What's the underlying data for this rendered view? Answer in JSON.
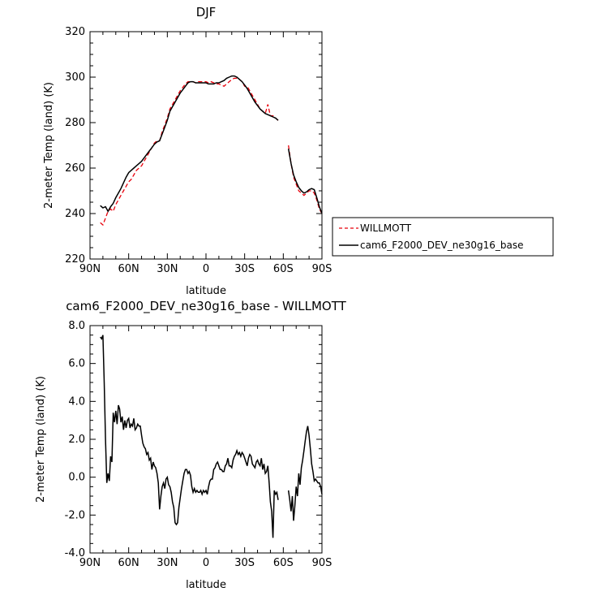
{
  "chart_data": [
    {
      "type": "line",
      "title": "DJF",
      "xlabel": "latitude",
      "ylabel": "2-meter Temp (land) (K)",
      "xlim": [
        90,
        -90
      ],
      "ylim": [
        220,
        320
      ],
      "x_ticks": [
        90,
        60,
        30,
        0,
        -30,
        -60,
        -90
      ],
      "x_tick_labels": [
        "90N",
        "60N",
        "30N",
        "0",
        "30S",
        "60S",
        "90S"
      ],
      "y_ticks": [
        220,
        240,
        260,
        280,
        300,
        320
      ],
      "y_tick_labels": [
        "220",
        "240",
        "260",
        "280",
        "300",
        "320"
      ],
      "legend_position": "right",
      "series": [
        {
          "name": "WILLMOTT",
          "color": "#e8000b",
          "dash": "dashed",
          "segments": [
            {
              "x": [
                82,
                80,
                78,
                76,
                74,
                72,
                70,
                68,
                66,
                64,
                62,
                60,
                58,
                56,
                54,
                52,
                50,
                48,
                46,
                44,
                42,
                40,
                38,
                36,
                34,
                32,
                30,
                28,
                26,
                24,
                22,
                20,
                18,
                16,
                14,
                12,
                10,
                8,
                6,
                4,
                2,
                0,
                -2,
                -4,
                -6,
                -8,
                -10,
                -12,
                -14,
                -16,
                -18,
                -20,
                -22,
                -24,
                -26,
                -28,
                -30,
                -32,
                -34,
                -36,
                -38,
                -40,
                -42,
                -44,
                -46,
                -48,
                -50,
                -52,
                -54,
                -56
              ],
              "y": [
                236,
                235,
                238,
                241,
                242,
                241,
                244,
                246,
                248,
                250,
                252,
                254,
                255,
                257,
                259,
                260,
                261,
                263,
                265,
                267,
                269,
                271,
                272,
                272,
                276,
                279,
                282,
                286,
                288,
                290,
                292,
                294,
                295.5,
                297,
                298,
                298,
                298,
                297.5,
                298,
                298,
                298,
                298,
                297.5,
                298,
                297.5,
                297,
                297,
                296.5,
                296,
                297,
                298,
                299,
                299.5,
                299.5,
                299,
                298,
                296,
                296,
                294,
                292,
                290,
                288,
                286,
                285,
                284,
                288,
                283,
                283,
                282,
                281
              ]
            },
            {
              "x": [
                -64,
                -66,
                -68,
                -70,
                -72,
                -74,
                -76,
                -78,
                -80,
                -82,
                -84,
                -86,
                -88,
                -90
              ],
              "y": [
                270,
                262,
                256,
                253,
                250,
                249,
                248,
                249,
                250,
                250,
                249,
                246,
                242,
                240
              ]
            }
          ]
        },
        {
          "name": "cam6_F2000_DEV_ne30g16_base",
          "color": "#000000",
          "dash": "solid",
          "segments": [
            {
              "x": [
                82,
                80,
                78,
                76,
                74,
                72,
                70,
                68,
                66,
                64,
                62,
                60,
                58,
                56,
                54,
                52,
                50,
                48,
                46,
                44,
                42,
                40,
                38,
                36,
                34,
                32,
                30,
                28,
                26,
                24,
                22,
                20,
                18,
                16,
                14,
                12,
                10,
                8,
                6,
                4,
                2,
                0,
                -2,
                -4,
                -6,
                -8,
                -10,
                -12,
                -14,
                -16,
                -18,
                -20,
                -22,
                -24,
                -26,
                -28,
                -30,
                -32,
                -34,
                -36,
                -38,
                -40,
                -42,
                -44,
                -46,
                -48,
                -50,
                -52,
                -54,
                -56
              ],
              "y": [
                243.5,
                242.5,
                243,
                241,
                243,
                244.5,
                247,
                249,
                251,
                253.5,
                256,
                258,
                259,
                260,
                261,
                262,
                263,
                264.5,
                266,
                267.5,
                269,
                270.5,
                271.5,
                272,
                275,
                278,
                281,
                285,
                287,
                289,
                291,
                293,
                294.5,
                296,
                297.5,
                298,
                298,
                297.5,
                297.5,
                297.5,
                297.5,
                297.5,
                297,
                297,
                297,
                297.5,
                297.5,
                298,
                298.5,
                299.5,
                300,
                300.5,
                300.5,
                300,
                299,
                298,
                296.5,
                295,
                293,
                291,
                289,
                287.5,
                286,
                285,
                284,
                283.5,
                283,
                282.5,
                282,
                281
              ]
            },
            {
              "x": [
                -64,
                -66,
                -68,
                -70,
                -72,
                -74,
                -76,
                -78,
                -80,
                -82,
                -84,
                -86,
                -88,
                -90
              ],
              "y": [
                268.5,
                262,
                257,
                254,
                251.5,
                250,
                249,
                249.5,
                250.5,
                251,
                250.5,
                247,
                243,
                240
              ]
            }
          ]
        }
      ]
    },
    {
      "type": "line",
      "title": "cam6_F2000_DEV_ne30g16_base - WILLMOTT",
      "xlabel": "latitude",
      "ylabel": "2-meter Temp (land) (K)",
      "xlim": [
        90,
        -90
      ],
      "ylim": [
        -4,
        8
      ],
      "x_ticks": [
        90,
        60,
        30,
        0,
        -30,
        -60,
        -90
      ],
      "x_tick_labels": [
        "90N",
        "60N",
        "30N",
        "0",
        "30S",
        "60S",
        "90S"
      ],
      "y_ticks": [
        -4,
        -2,
        0,
        2,
        4,
        6,
        8
      ],
      "y_tick_labels": [
        "-4.0",
        "-2.0",
        "0.0",
        "2.0",
        "4.0",
        "6.0",
        "8.0"
      ],
      "series": [
        {
          "color": "#000000",
          "dash": "solid",
          "segments": [
            {
              "x": [
                82,
                81,
                80,
                79,
                78,
                77,
                76,
                75,
                74,
                73,
                72,
                71,
                70,
                69,
                68,
                67,
                66,
                65,
                64,
                63,
                62,
                61,
                60,
                59,
                58,
                57,
                56,
                55,
                54,
                53,
                52,
                51,
                50,
                49,
                48,
                47,
                46,
                45,
                44,
                43,
                42,
                41,
                40,
                39,
                38,
                37,
                36,
                35,
                34,
                33,
                32,
                31,
                30,
                29,
                28,
                27,
                26,
                25,
                24,
                23,
                22,
                21,
                20,
                19,
                18,
                17,
                16,
                15,
                14,
                13,
                12,
                11,
                10,
                9,
                8,
                7,
                6,
                5,
                4,
                3,
                2,
                1,
                0,
                -1,
                -2,
                -3,
                -4,
                -5,
                -6,
                -7,
                -8,
                -9,
                -10,
                -11,
                -12,
                -13,
                -14,
                -15,
                -16,
                -17,
                -18,
                -19,
                -20,
                -21,
                -22,
                -23,
                -24,
                -25,
                -26,
                -27,
                -28,
                -29,
                -30,
                -31,
                -32,
                -33,
                -34,
                -35,
                -36,
                -37,
                -38,
                -39,
                -40,
                -41,
                -42,
                -43,
                -44,
                -45,
                -46,
                -47,
                -48,
                -49,
                -50,
                -51,
                -52,
                -53,
                -54,
                -55,
                -56
              ],
              "y": [
                7.4,
                7.3,
                7.5,
                5.0,
                2.0,
                -0.3,
                0.2,
                -0.2,
                1.1,
                0.8,
                3.4,
                2.9,
                3.5,
                2.8,
                3.8,
                3.6,
                2.9,
                3.2,
                2.5,
                3.0,
                2.6,
                3.0,
                3.1,
                2.6,
                2.8,
                2.7,
                3.1,
                2.5,
                2.6,
                2.8,
                2.7,
                2.7,
                2.2,
                1.8,
                1.6,
                1.5,
                1.2,
                1.3,
                0.9,
                1.0,
                0.4,
                0.8,
                0.6,
                0.5,
                0.2,
                -0.3,
                -1.7,
                -1.0,
                -0.5,
                -0.3,
                -0.6,
                -0.1,
                0.0,
                -0.4,
                -0.5,
                -0.8,
                -1.3,
                -1.6,
                -2.4,
                -2.5,
                -2.4,
                -1.6,
                -1.1,
                -0.6,
                -0.2,
                0.2,
                0.4,
                0.4,
                0.2,
                0.3,
                0.1,
                -0.5,
                -0.8,
                -0.6,
                -0.8,
                -0.7,
                -0.8,
                -0.8,
                -0.7,
                -0.9,
                -0.7,
                -0.8,
                -0.7,
                -0.9,
                -0.5,
                -0.2,
                -0.1,
                -0.1,
                0.4,
                0.5,
                0.7,
                0.8,
                0.6,
                0.4,
                0.4,
                0.3,
                0.3,
                0.6,
                0.7,
                1.0,
                0.6,
                0.6,
                0.5,
                0.9,
                1.1,
                1.2,
                1.4,
                1.2,
                1.3,
                1.1,
                1.3,
                1.2,
                1.0,
                0.8,
                0.6,
                1.0,
                1.2,
                1.1,
                0.7,
                0.6,
                0.5,
                0.8,
                0.9,
                0.7,
                0.6,
                1.0,
                0.4,
                0.7,
                0.2,
                0.3,
                0.6,
                -0.3,
                -1.3,
                -1.8,
                -3.2,
                -0.7,
                -0.9,
                -0.8,
                -1.2
              ]
            },
            {
              "x": [
                -64,
                -65,
                -66,
                -67,
                -68,
                -69,
                -70,
                -71,
                -72,
                -73,
                -74,
                -75,
                -76,
                -77,
                -78,
                -79,
                -80,
                -81,
                -82,
                -83,
                -84,
                -85,
                -86,
                -87,
                -88,
                -89,
                -90
              ],
              "y": [
                -0.7,
                -1.2,
                -1.8,
                -1.0,
                -2.3,
                -1.5,
                -0.5,
                -1.0,
                0.2,
                -0.4,
                0.5,
                0.9,
                1.4,
                1.9,
                2.4,
                2.7,
                2.2,
                1.5,
                0.7,
                0.3,
                -0.2,
                -0.1,
                -0.2,
                -0.3,
                -0.3,
                -0.5,
                -0.9
              ]
            }
          ]
        }
      ]
    }
  ]
}
